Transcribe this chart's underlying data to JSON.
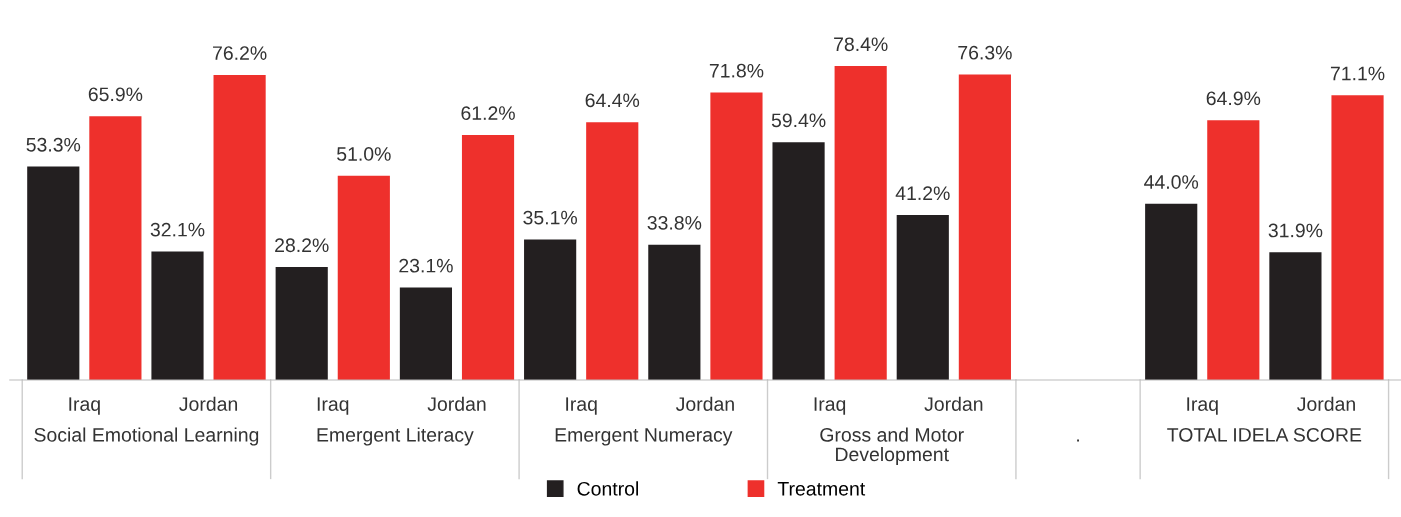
{
  "chart_data": {
    "type": "bar",
    "categories": [
      "Iraq",
      "Jordan",
      "Iraq",
      "Jordan",
      "Iraq",
      "Jordan",
      "Iraq",
      "Jordan",
      null,
      "Iraq",
      "Jordan"
    ],
    "annotations": [
      "Social Emotional Learning",
      "Emergent Literacy",
      "Emergent Numeracy",
      "Gross and Motor\nDevelopment",
      ".",
      "TOTAL IDELA SCORE"
    ],
    "series": [
      {
        "name": "Control",
        "color": "#231f20",
        "values": [
          53.3,
          32.1,
          28.2,
          23.1,
          35.1,
          33.8,
          59.4,
          41.2,
          null,
          44.0,
          31.9
        ],
        "value_labels": [
          "53.3%",
          "32.1%",
          "28.2%",
          "23.1%",
          "35.1%",
          "33.8%",
          "59.4%",
          "41.2%",
          null,
          "44.0%",
          "31.9%"
        ]
      },
      {
        "name": "Treatment",
        "color": "#ee302c",
        "values": [
          65.9,
          76.2,
          51.0,
          61.2,
          64.4,
          71.8,
          78.4,
          76.3,
          null,
          64.9,
          71.1
        ],
        "value_labels": [
          "65.9%",
          "76.2%",
          "51.0%",
          "61.2%",
          "64.4%",
          "71.8%",
          "78.4%",
          "76.3%",
          null,
          "64.9%",
          "71.1%"
        ]
      }
    ],
    "legend": "bottom",
    "grid": false
  }
}
